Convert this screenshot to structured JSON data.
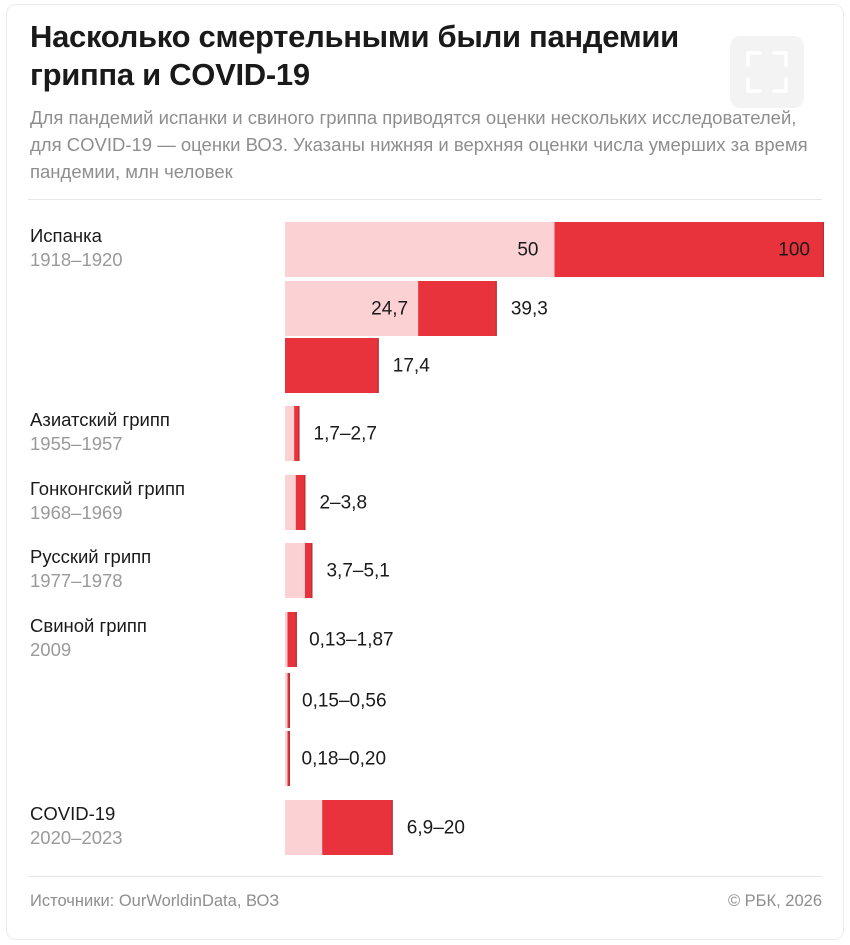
{
  "header": {
    "title": "Насколько смертельными были пандемии гриппа и COVID-19",
    "subtitle": "Для пандемий испанки и свиного гриппа приводятся оценки нескольких исследователей, для COVID-19 — оценки ВОЗ. Указаны нижняя и верхняя оценки числа умерших за время пандемии, млн человек",
    "expand_icon": "expand-icon"
  },
  "footer": {
    "source": "Источники: OurWorldinData, ВОЗ",
    "copyright": "© РБК, 2026"
  },
  "colors": {
    "upper": "#e8333c",
    "lower": "#fcd1d3",
    "value_label": "#1a1a1a"
  },
  "chart_data": {
    "type": "bar",
    "orientation": "horizontal",
    "stacked_range": true,
    "unit": "млн человек",
    "xlim": [
      0,
      100
    ],
    "groups": [
      {
        "name": "Испанка",
        "years": "1918–1920",
        "estimates": [
          {
            "lower": 50,
            "upper": 100,
            "label_lower": "50",
            "label_upper": "100",
            "label_style": "split-inside"
          },
          {
            "lower": 24.7,
            "upper": 39.3,
            "label_lower": "24,7",
            "label_upper": "39,3",
            "label_style": "split"
          },
          {
            "lower": 17.4,
            "upper": 17.4,
            "label": "17,4",
            "label_style": "single"
          }
        ]
      },
      {
        "name": "Азиатский грипп",
        "years": "1955–1957",
        "estimates": [
          {
            "lower": 1.7,
            "upper": 2.7,
            "label": "1,7–2,7"
          }
        ]
      },
      {
        "name": "Гонконгский грипп",
        "years": "1968–1969",
        "estimates": [
          {
            "lower": 2,
            "upper": 3.8,
            "label": "2–3,8"
          }
        ]
      },
      {
        "name": "Русский грипп",
        "years": "1977–1978",
        "estimates": [
          {
            "lower": 3.7,
            "upper": 5.1,
            "label": "3,7–5,1"
          }
        ]
      },
      {
        "name": "Свиной грипп",
        "years": "2009",
        "estimates": [
          {
            "lower": 0.13,
            "upper": 1.87,
            "label": "0,13–1,87"
          },
          {
            "lower": 0.15,
            "upper": 0.56,
            "label": "0,15–0,56"
          },
          {
            "lower": 0.18,
            "upper": 0.2,
            "label": "0,18–0,20"
          }
        ]
      },
      {
        "name": "COVID-19",
        "years": "2020–2023",
        "estimates": [
          {
            "lower": 6.9,
            "upper": 20,
            "label": "6,9–20"
          }
        ]
      }
    ]
  }
}
